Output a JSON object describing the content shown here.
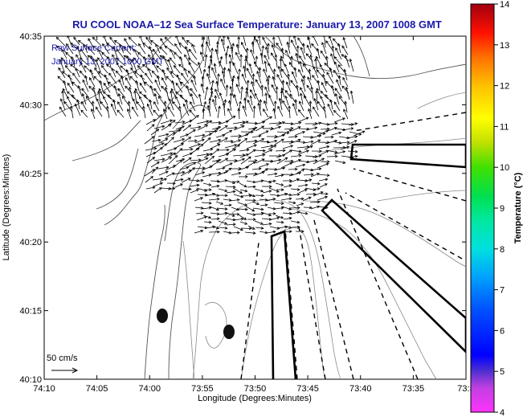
{
  "title": "RU COOL  NOAA–12  Sea Surface Temperature:  January 13, 2007 1008 GMT",
  "annotation": {
    "line1": "Raw Surface Current:",
    "line2": "January 13, 2007 1000 GMT"
  },
  "map": {
    "x_label": "Longitude (Degrees:Minutes)",
    "y_label": "Latitude (Degrees:Minutes)",
    "x_ticks": [
      "74:10",
      "74:05",
      "74:00",
      "73:55",
      "73:50",
      "73:45",
      "73:40",
      "73:35",
      "73:3"
    ],
    "y_ticks": [
      "40:35",
      "40:30",
      "40:25",
      "40:20",
      "40:15",
      "40:10"
    ],
    "scale_label": "50 cm/s"
  },
  "colorbar": {
    "label": "Temperature (°C)",
    "ticks": [
      "14",
      "13",
      "12",
      "11",
      "10",
      "9",
      "8",
      "7",
      "6",
      "5",
      "4"
    ],
    "min": 4,
    "max": 14
  },
  "colors": {
    "title": "#1a1aa8",
    "land_outline": "#666666",
    "vectors": "#000000"
  }
}
